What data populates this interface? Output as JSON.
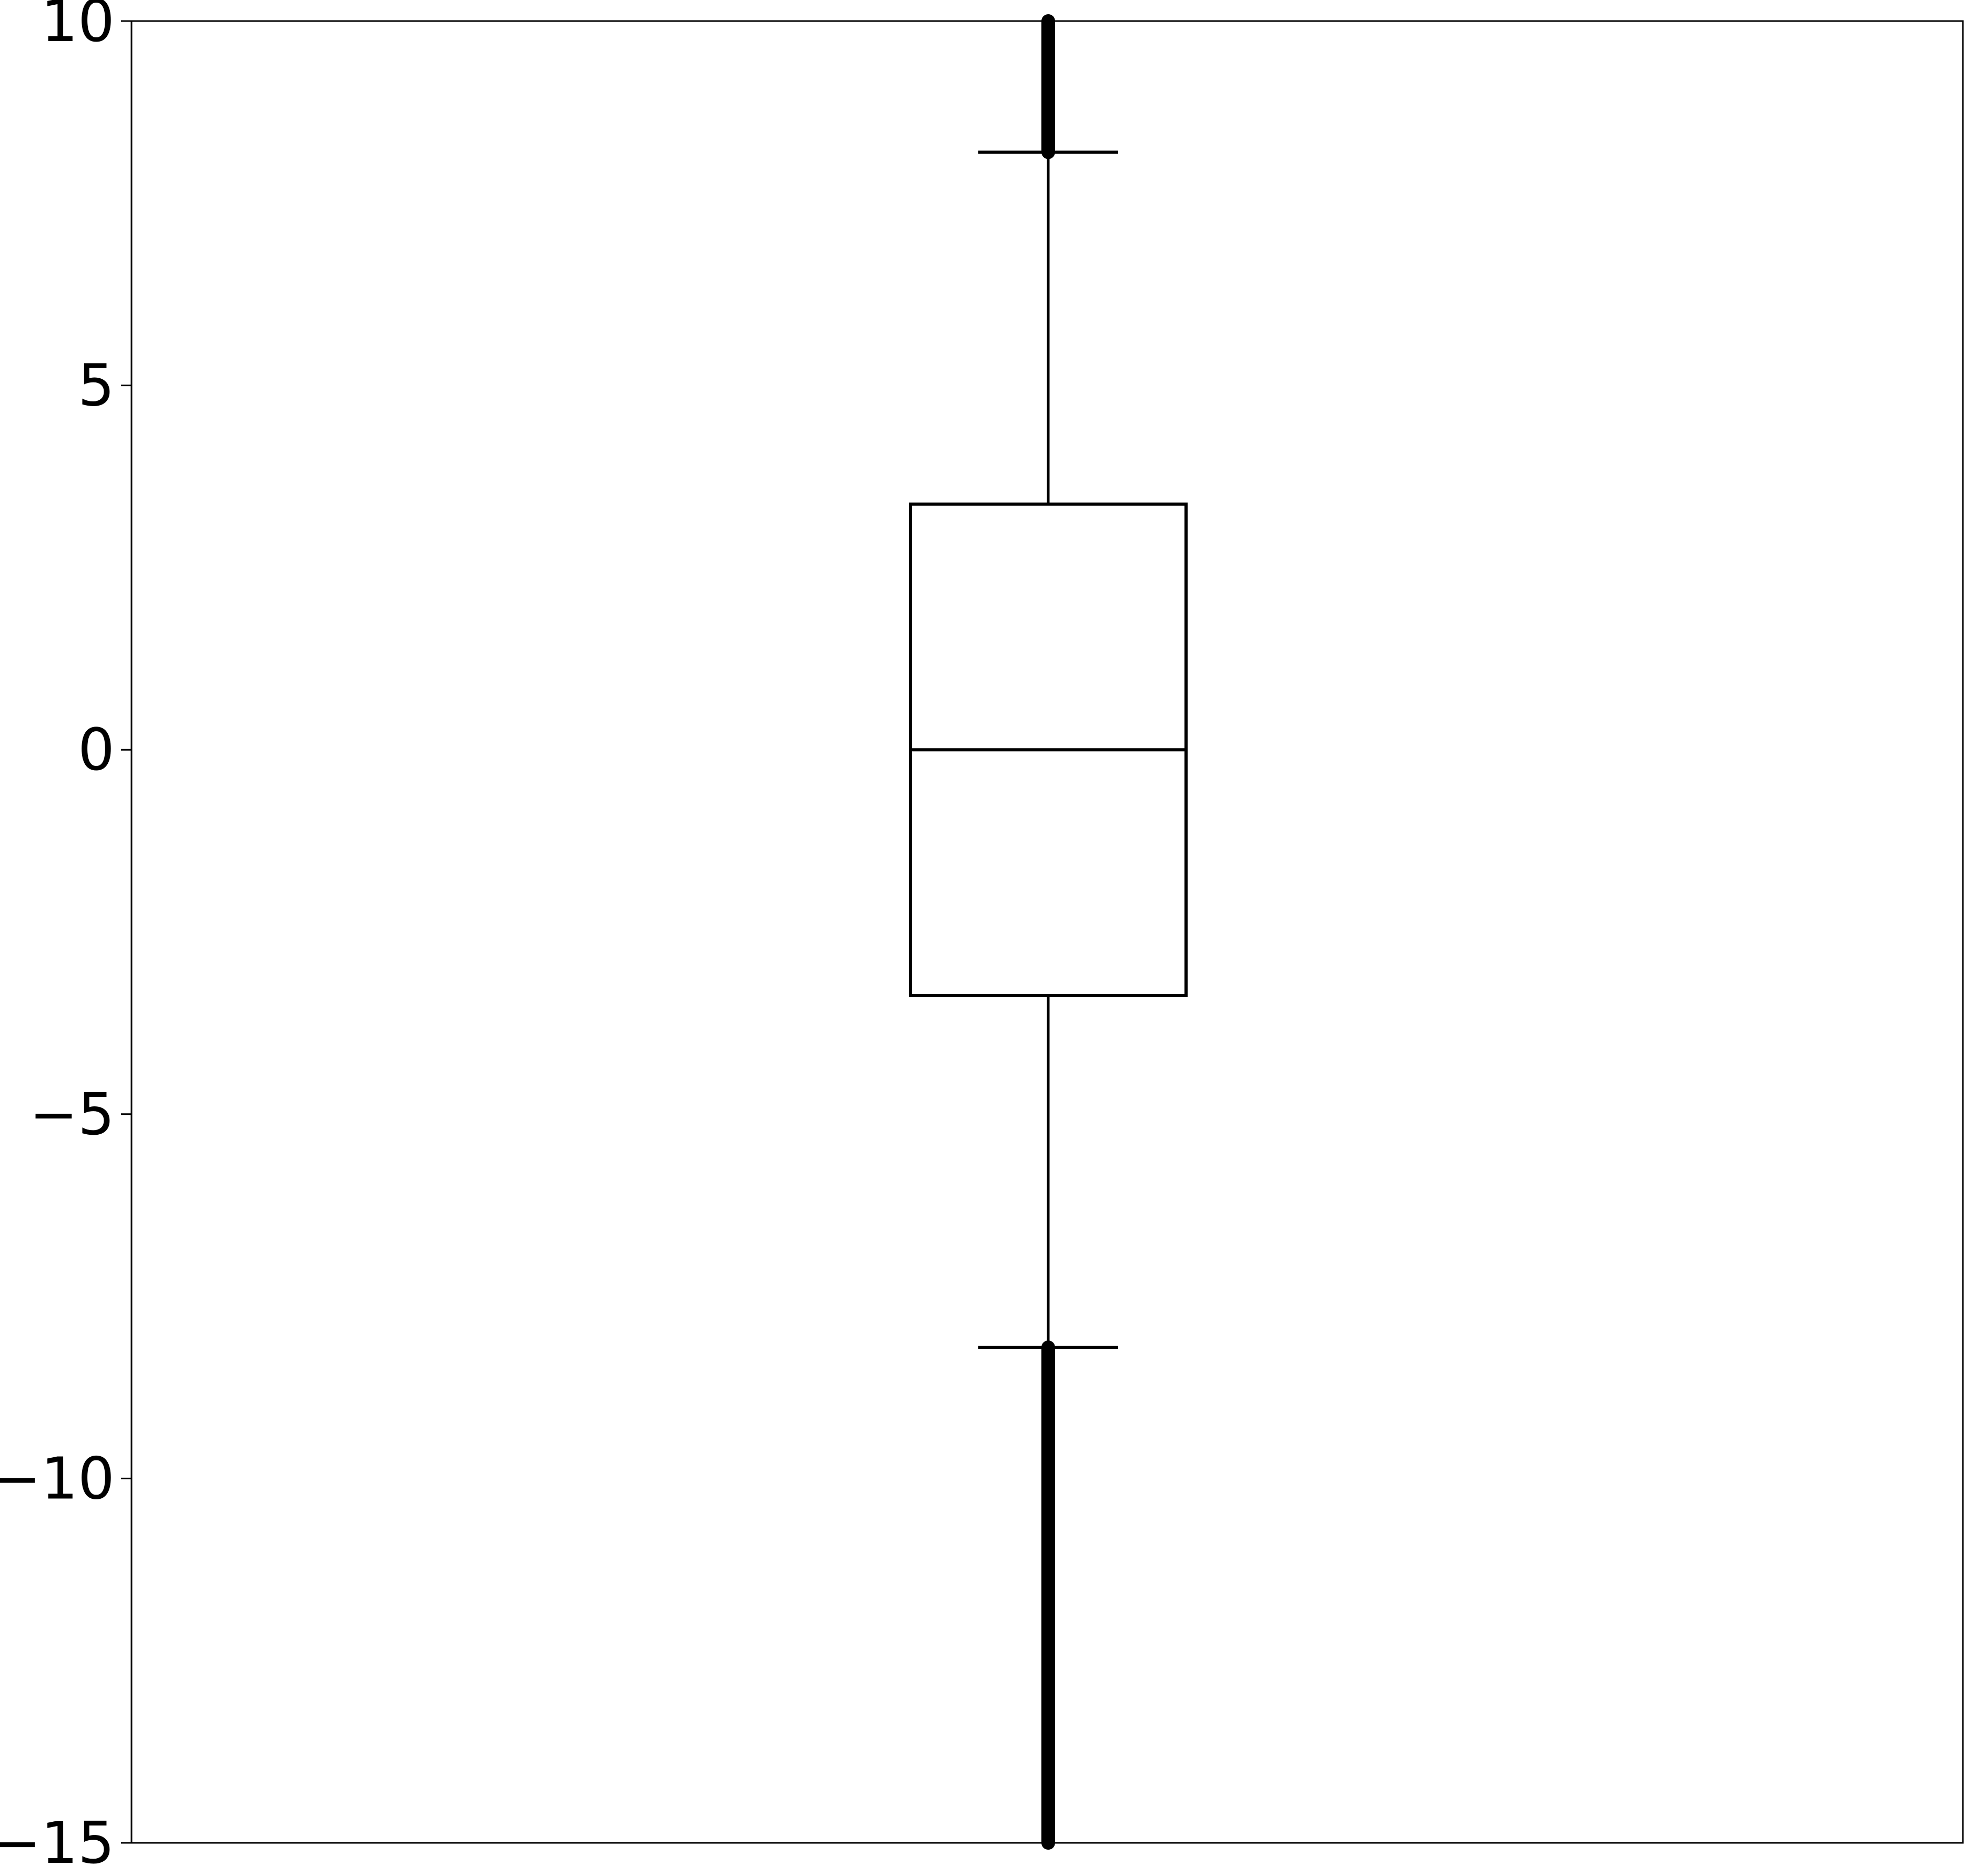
{
  "chart_data": {
    "type": "box",
    "title": "",
    "xlabel": "",
    "ylabel": "",
    "ylim": [
      -15,
      10
    ],
    "yticks": [
      {
        "value": 10,
        "label": "10"
      },
      {
        "value": 5,
        "label": "5"
      },
      {
        "value": 0,
        "label": "0"
      },
      {
        "value": -5,
        "label": "−5"
      },
      {
        "value": -10,
        "label": "−10"
      },
      {
        "value": -15,
        "label": "−15"
      }
    ],
    "x_ticks_visible": false,
    "grid": false,
    "box": {
      "whisker_low": -8.2,
      "q1": -3.37,
      "median": 0,
      "q3": 3.37,
      "whisker_high": 8.2,
      "outliers_low_range": [
        -15,
        -8.2
      ],
      "outliers_high_range": [
        8.2,
        10
      ],
      "dense_outliers": true
    },
    "colors": {
      "box_edge": "#000000",
      "median_line": "#000000",
      "whisker": "#000000",
      "outlier": "#000000",
      "background": "#ffffff",
      "axis": "#000000"
    }
  }
}
